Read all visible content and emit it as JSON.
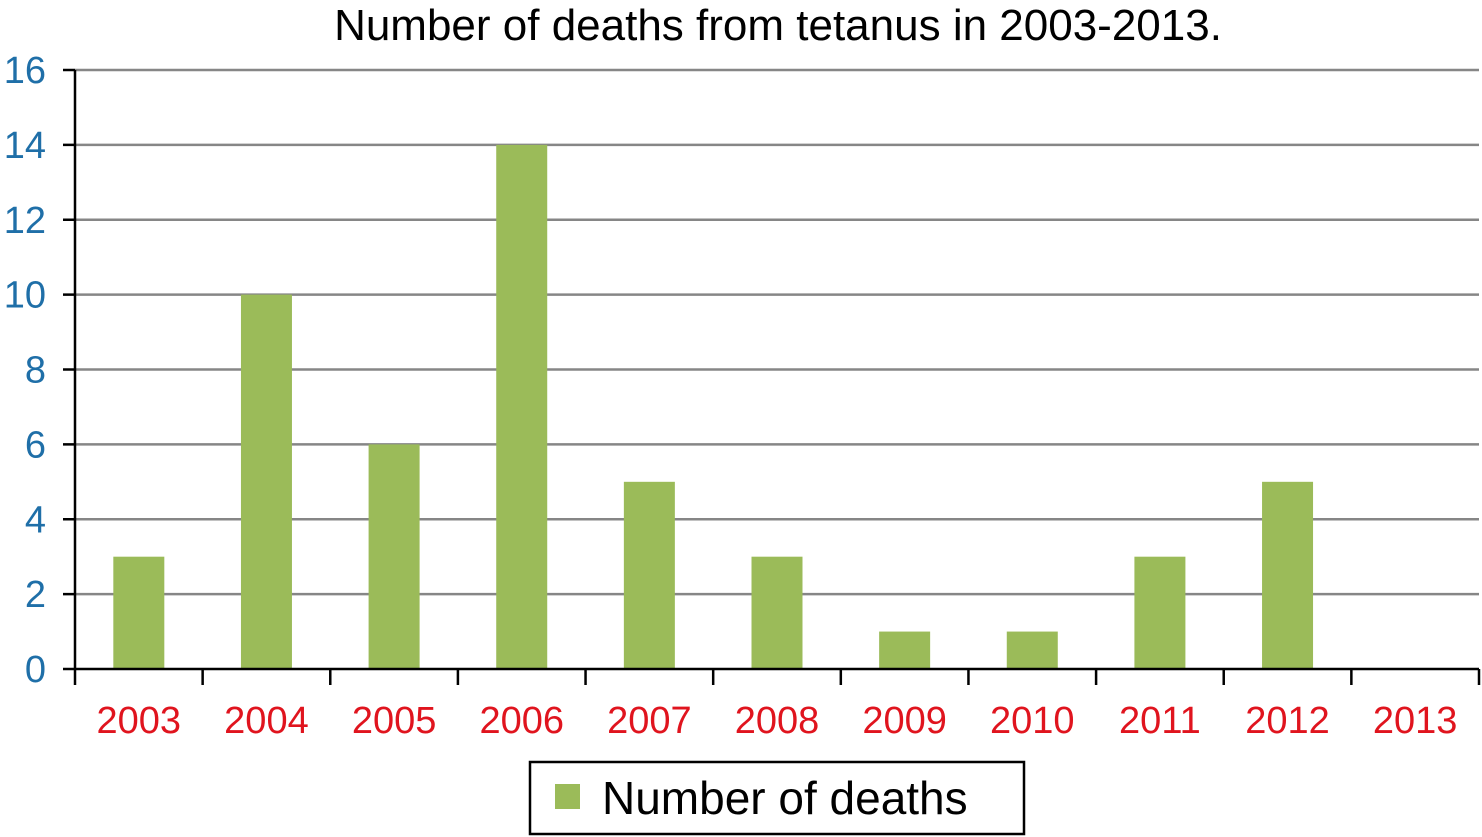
{
  "chart_data": {
    "type": "bar",
    "title": "Number of deaths from tetanus in 2003-2013.",
    "xlabel": "",
    "ylabel": "",
    "categories": [
      "2003",
      "2004",
      "2005",
      "2006",
      "2007",
      "2008",
      "2009",
      "2010",
      "2011",
      "2012",
      "2013"
    ],
    "series": [
      {
        "name": "Number of deaths",
        "values": [
          3,
          10,
          6,
          14,
          5,
          3,
          1,
          1,
          3,
          5,
          0
        ]
      }
    ],
    "ylim": [
      0,
      16
    ],
    "yticks": [
      "0",
      "2",
      "4",
      "6",
      "8",
      "10",
      "12",
      "14",
      "16"
    ],
    "grid": true,
    "legend_position": "bottom-center",
    "colors": {
      "bar": "#9BBB59",
      "gridline": "#868686",
      "axis": "#000000",
      "y_tick_text": "#1F6FA8",
      "x_tick_text": "#E0141E",
      "legend_border": "#000000"
    }
  }
}
